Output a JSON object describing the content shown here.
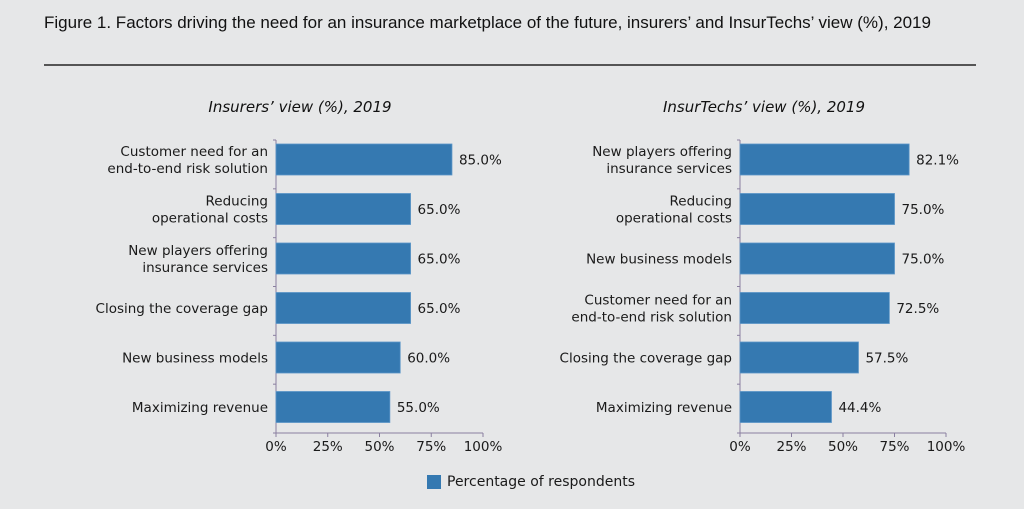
{
  "figure": {
    "title": "Figure 1. Factors driving the need for an insurance marketplace of the future, insurers’ and InsurTechs’ view (%), 2019"
  },
  "legend": {
    "label": "Percentage of respondents",
    "color": "#3579b1"
  },
  "chart_data": [
    {
      "type": "bar",
      "orientation": "horizontal",
      "title": "Insurers’ view (%), 2019",
      "categories": [
        [
          "Customer need for an",
          "end-to-end risk solution"
        ],
        [
          "Reducing",
          "operational costs"
        ],
        [
          "New players offering",
          "insurance services"
        ],
        [
          "Closing the coverage gap"
        ],
        [
          "New business models"
        ],
        [
          "Maximizing revenue"
        ]
      ],
      "values": [
        85.0,
        65.0,
        65.0,
        65.0,
        60.0,
        55.0
      ],
      "value_labels": [
        "85.0%",
        "65.0%",
        "65.0%",
        "65.0%",
        "60.0%",
        "55.0%"
      ],
      "xlabel": "",
      "ylabel": "",
      "xlim": [
        0,
        100
      ],
      "xticks": [
        "0%",
        "25%",
        "50%",
        "75%",
        "100%"
      ],
      "series_name": "Percentage of respondents",
      "grid": false
    },
    {
      "type": "bar",
      "orientation": "horizontal",
      "title": "InsurTechs’ view (%), 2019",
      "categories": [
        [
          "New players offering",
          "insurance services"
        ],
        [
          "Reducing",
          "operational costs"
        ],
        [
          "New business models"
        ],
        [
          "Customer need for an",
          "end-to-end risk solution"
        ],
        [
          "Closing the coverage gap"
        ],
        [
          "Maximizing revenue"
        ]
      ],
      "values": [
        82.1,
        75.0,
        75.0,
        72.5,
        57.5,
        44.4
      ],
      "value_labels": [
        "82.1%",
        "75.0%",
        "75.0%",
        "72.5%",
        "57.5%",
        "44.4%"
      ],
      "xlabel": "",
      "ylabel": "",
      "xlim": [
        0,
        100
      ],
      "xticks": [
        "0%",
        "25%",
        "50%",
        "75%",
        "100%"
      ],
      "series_name": "Percentage of respondents",
      "grid": false
    }
  ]
}
